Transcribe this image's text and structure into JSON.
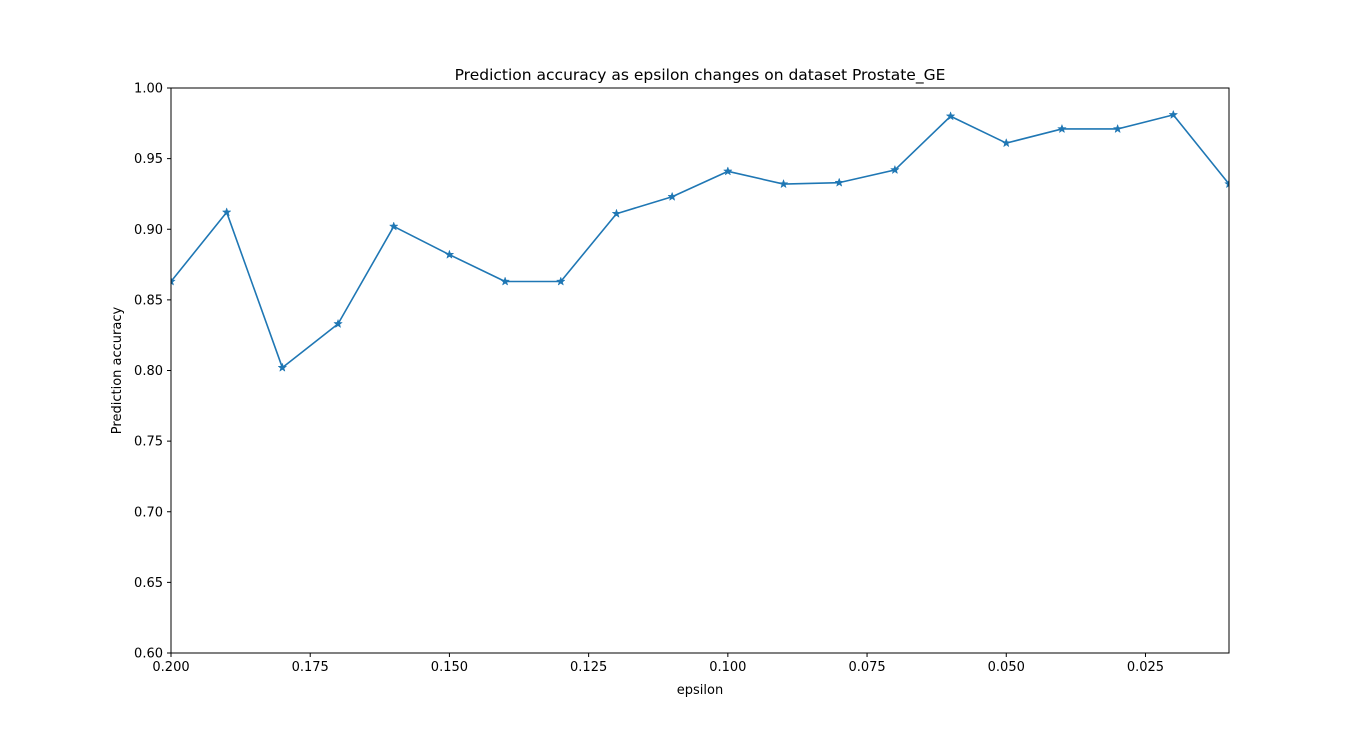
{
  "chart_data": {
    "type": "line",
    "title": "Prediction accuracy as epsilon changes on dataset Prostate_GE",
    "xlabel": "epsilon",
    "ylabel": "Prediction accuracy",
    "xlim": [
      0.2,
      0.01
    ],
    "ylim": [
      0.6,
      1.0
    ],
    "x_ticks": [
      0.2,
      0.175,
      0.15,
      0.125,
      0.1,
      0.075,
      0.05,
      0.025
    ],
    "x_tick_labels": [
      "0.200",
      "0.175",
      "0.150",
      "0.125",
      "0.100",
      "0.075",
      "0.050",
      "0.025"
    ],
    "y_ticks": [
      0.6,
      0.65,
      0.7,
      0.75,
      0.8,
      0.85,
      0.9,
      0.95,
      1.0
    ],
    "y_tick_labels": [
      "0.60",
      "0.65",
      "0.70",
      "0.75",
      "0.80",
      "0.85",
      "0.90",
      "0.95",
      "1.00"
    ],
    "grid": false,
    "marker": "star",
    "series": [
      {
        "color": "#1f77b4",
        "x": [
          0.2,
          0.19,
          0.18,
          0.17,
          0.16,
          0.15,
          0.14,
          0.13,
          0.12,
          0.11,
          0.1,
          0.09,
          0.08,
          0.07,
          0.06,
          0.05,
          0.04,
          0.03,
          0.02,
          0.01
        ],
        "y": [
          0.863,
          0.912,
          0.802,
          0.833,
          0.902,
          0.882,
          0.863,
          0.863,
          0.911,
          0.923,
          0.941,
          0.932,
          0.933,
          0.942,
          0.98,
          0.961,
          0.971,
          0.971,
          0.981,
          0.932
        ]
      }
    ]
  }
}
